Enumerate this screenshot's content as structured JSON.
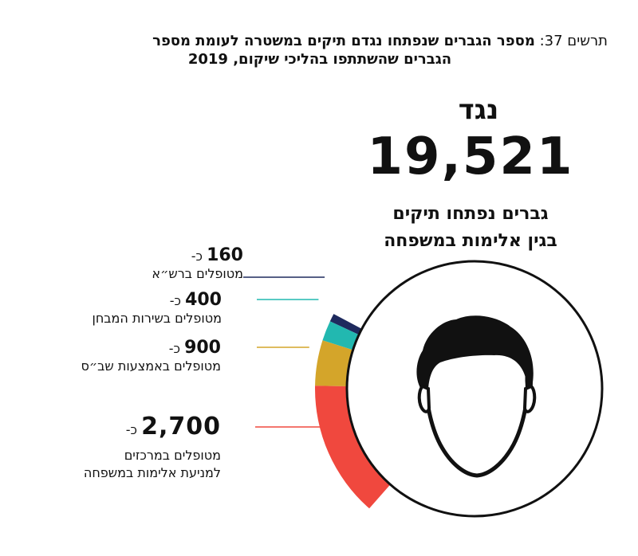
{
  "title": {
    "prefix": "תרשים 37:",
    "line1": "מספר הגברים שנפתחו נגדם תיקים במשטרה לעומת מספר",
    "line2": "הגברים שהשתתפו בהליכי שיקום, 2019"
  },
  "against_label": "נגד",
  "chart_data": {
    "type": "pie",
    "total": 19521,
    "total_display": "19,521",
    "total_description": [
      "גברים נפתחו תיקים",
      "בגין אלימות במשפחה"
    ],
    "approx_prefix": "כ-",
    "segments": [
      {
        "value": 160,
        "display": "160",
        "label": [
          "מטופלים ברש״א"
        ],
        "color": "#1e2a5e"
      },
      {
        "value": 400,
        "display": "400",
        "label": [
          "מטופלים בשירות המבחן"
        ],
        "color": "#22b8b0"
      },
      {
        "value": 900,
        "display": "900",
        "label": [
          "מטופלים באמצעות שב״ס"
        ],
        "color": "#d4a52a"
      },
      {
        "value": 2700,
        "display": "2,700",
        "label": [
          "מטופלים במרכזים",
          "למניעת אלימות במשפחה"
        ],
        "color": "#f0483e"
      }
    ]
  }
}
